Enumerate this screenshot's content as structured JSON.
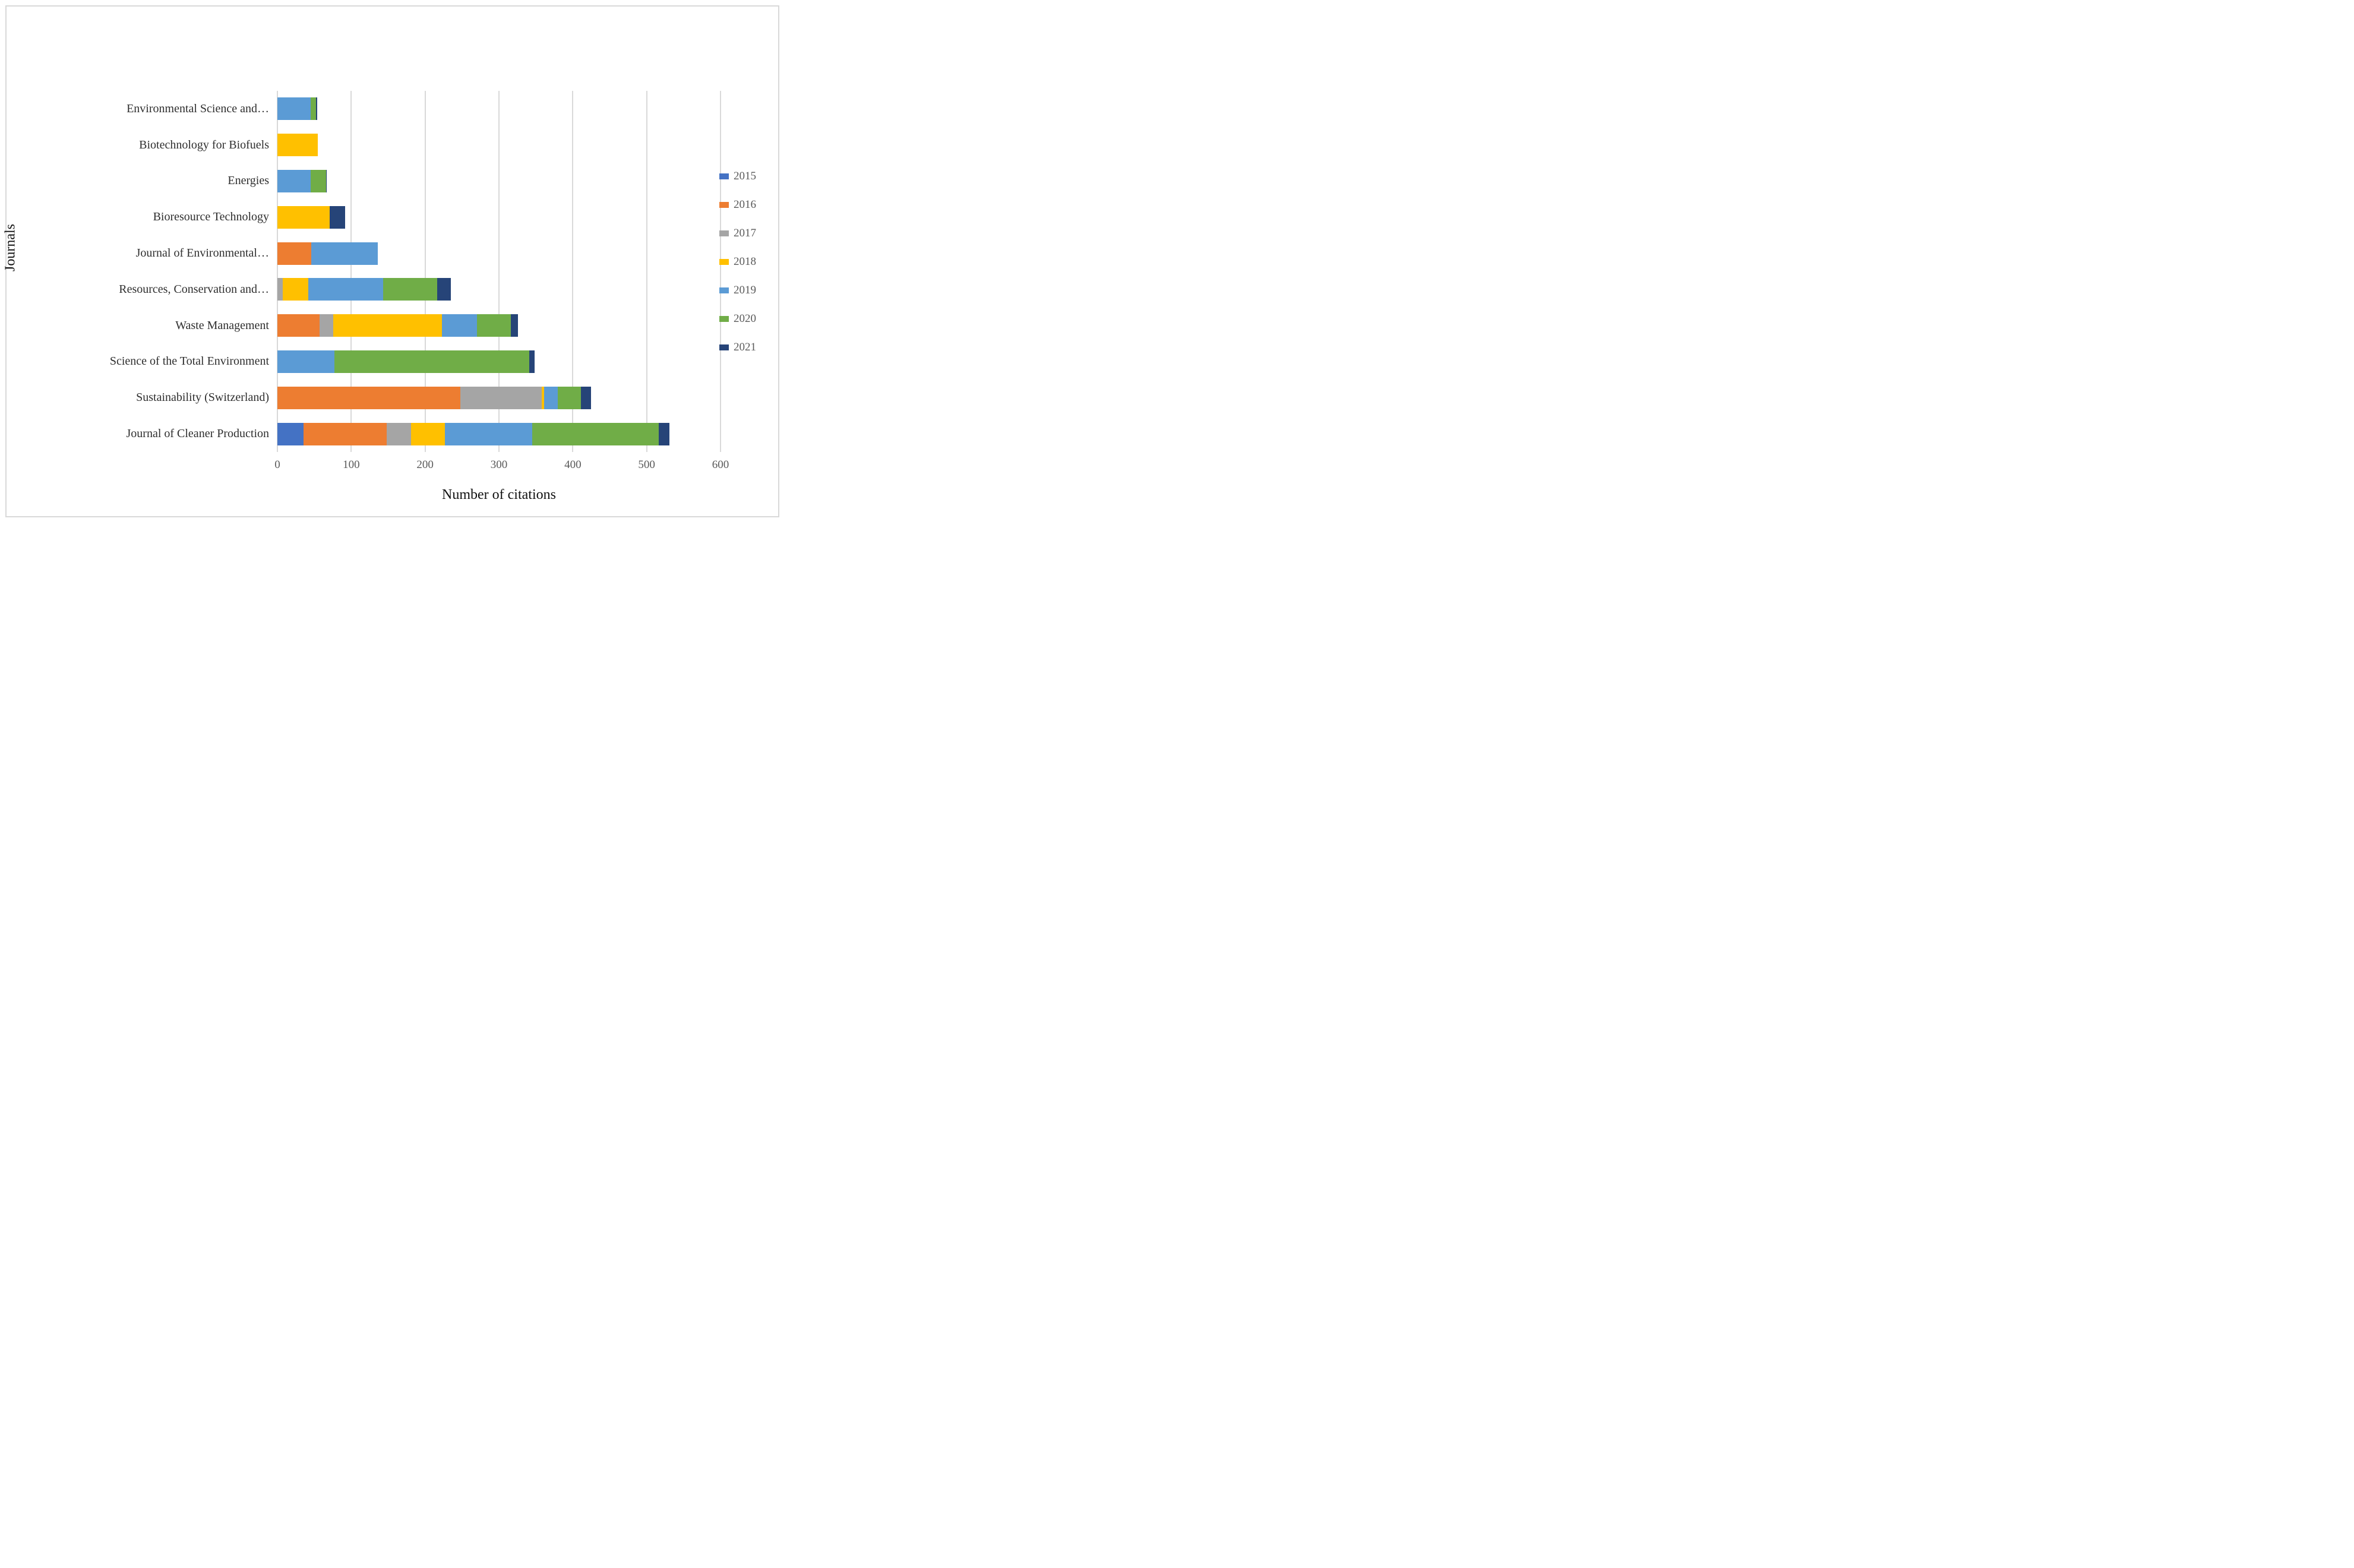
{
  "figure": {
    "border_color": "#d9d9d9",
    "background": "#ffffff"
  },
  "chart_data": {
    "type": "bar",
    "orientation": "horizontal",
    "stacked": true,
    "title": "",
    "xlabel": "Number of citations",
    "ylabel": "Journals",
    "xlim": [
      0,
      600
    ],
    "tick_step": 100,
    "tick_labels": [
      "0",
      "100",
      "200",
      "300",
      "400",
      "500",
      "600"
    ],
    "grid": true,
    "gridline_color": "#d9d9d9",
    "legend_position": "right",
    "categories": [
      "Environmental Science and…",
      "Biotechnology for Biofuels",
      "Energies",
      "Bioresource Technology",
      "Journal of Environmental…",
      "Resources, Conservation and…",
      "Waste Management",
      "Science of the Total Environment",
      "Sustainability (Switzerland)",
      "Journal of Cleaner Production"
    ],
    "series": [
      {
        "name": "2015",
        "color": "#4472C4",
        "values": [
          0,
          0,
          0,
          0,
          0,
          0,
          0,
          0,
          0,
          35
        ]
      },
      {
        "name": "2016",
        "color": "#ED7D31",
        "values": [
          0,
          0,
          0,
          0,
          46,
          0,
          57,
          0,
          248,
          113
        ]
      },
      {
        "name": "2017",
        "color": "#A5A5A5",
        "values": [
          0,
          0,
          0,
          0,
          0,
          7,
          19,
          0,
          110,
          33
        ]
      },
      {
        "name": "2018",
        "color": "#FFC000",
        "values": [
          0,
          55,
          0,
          71,
          0,
          35,
          147,
          0,
          3,
          46
        ]
      },
      {
        "name": "2019",
        "color": "#5B9BD5",
        "values": [
          45,
          0,
          45,
          0,
          90,
          101,
          47,
          77,
          19,
          118
        ]
      },
      {
        "name": "2020",
        "color": "#70AD47",
        "values": [
          7,
          0,
          21,
          0,
          0,
          73,
          46,
          264,
          31,
          171
        ]
      },
      {
        "name": "2021",
        "color": "#264478",
        "values": [
          2,
          0,
          1,
          21,
          0,
          19,
          10,
          7,
          14,
          15
        ]
      }
    ]
  }
}
